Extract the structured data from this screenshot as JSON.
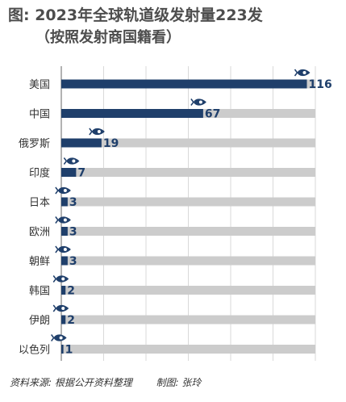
{
  "title": "图: 2023年全球轨道级发射量223发",
  "subtitle": "（按照发射商国籍看）",
  "footer": {
    "source": "资料来源: 根据公开资料整理",
    "made_by": "制图: 张玲"
  },
  "colors": {
    "bar": "#1f3f6b",
    "track": "#cccccc",
    "grid": "#d9d9d9"
  },
  "chart_data": {
    "type": "bar",
    "orientation": "horizontal",
    "title": "图: 2023年全球轨道级发射量223发",
    "subtitle": "（按照发射商国籍看）",
    "categories": [
      "美国",
      "中国",
      "俄罗斯",
      "印度",
      "日本",
      "欧洲",
      "朝鲜",
      "韩国",
      "伊朗",
      "以色列"
    ],
    "values": [
      116,
      67,
      19,
      7,
      3,
      3,
      3,
      2,
      2,
      1
    ],
    "xlim": [
      0,
      120
    ],
    "grid": true,
    "marker_icon": "rocket-icon"
  }
}
